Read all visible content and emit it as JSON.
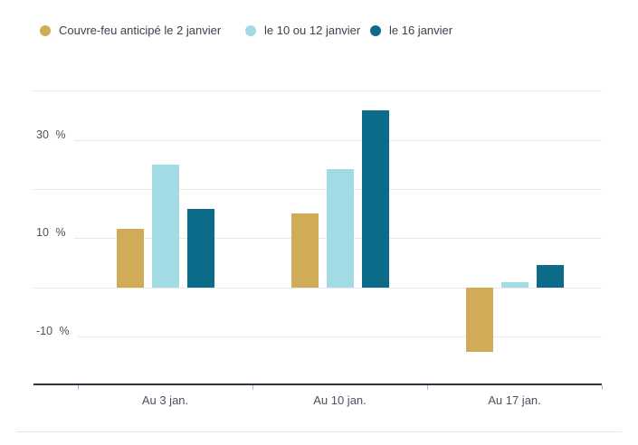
{
  "legend": {
    "items": [
      {
        "label": "Couvre-feu anticipé le 2 janvier",
        "color": "#d0ab58"
      },
      {
        "label": "le 10 ou 12 janvier",
        "color": "#a3dbe4"
      },
      {
        "label": "le 16 janvier",
        "color": "#0b6b89"
      }
    ]
  },
  "chart_data": {
    "type": "bar",
    "categories": [
      "Au 3 jan.",
      "Au 10 jan.",
      "Au 17 jan."
    ],
    "series": [
      {
        "name": "Couvre-feu anticipé le 2 janvier",
        "color": "#d0ab58",
        "values": [
          12,
          15,
          -13
        ]
      },
      {
        "name": "le 10 ou 12 janvier",
        "color": "#a3dbe4",
        "values": [
          25,
          24,
          1
        ]
      },
      {
        "name": "le 16 janvier",
        "color": "#0b6b89",
        "values": [
          16,
          36,
          4.5
        ]
      }
    ],
    "title": "",
    "xlabel": "",
    "ylabel": "",
    "ylim": [
      -19.5,
      40
    ],
    "y_gridlines": [
      40,
      30,
      20,
      10,
      0,
      -10
    ],
    "y_ticks_labeled": [
      30,
      10,
      -10
    ],
    "y_tick_suffix": " %",
    "grid": true,
    "legend_position": "top"
  },
  "colors": {
    "background": "#ffffff",
    "gridline": "#e9e9e9",
    "axis_line": "#2a3440",
    "x_tick": "#b4bac1",
    "tick_label": "#4a5260",
    "legend_text": "#39424e",
    "separator": "#e5e5e5"
  }
}
